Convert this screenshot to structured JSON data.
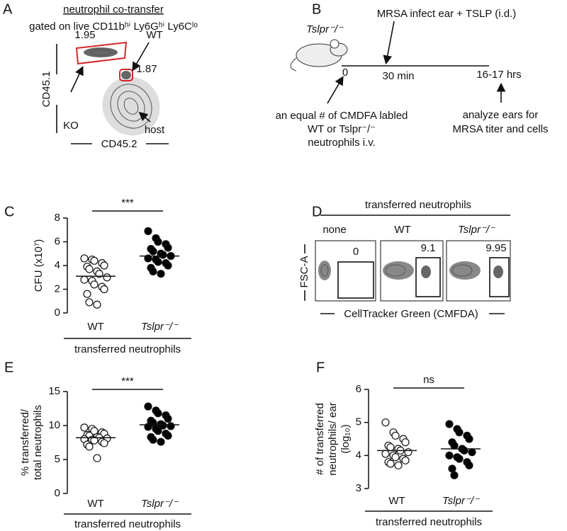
{
  "panels": {
    "A": {
      "letter": "A",
      "title": "neutrophil co-transfer",
      "subtitle": "gated on live CD11bʰⁱ Ly6Gʰⁱ Ly6Cˡᵒ",
      "gates": [
        "1.95",
        "WT",
        "1.87",
        "KO",
        "host"
      ],
      "ylabel": "CD45.1",
      "xlabel": "CD45.2"
    },
    "B": {
      "letter": "B",
      "mouse": "Tslpr⁻/⁻",
      "infect": "MRSA infect ear + TSLP (i.d.)",
      "times": [
        "0",
        "30 min",
        "16-17 hrs"
      ],
      "left_note": [
        "an equal # of CMDFA labled",
        "WT or Tslpr⁻/⁻",
        "neutrophils i.v."
      ],
      "right_note": [
        "analyze ears  for",
        "MRSA titer and cells"
      ]
    },
    "D": {
      "letter": "D",
      "group": "transferred neutrophils",
      "columns": [
        "none",
        "WT",
        "Tslpr⁻/⁻"
      ],
      "gates": [
        "0",
        "9.1",
        "9.95"
      ],
      "ylabel": "FSC-A",
      "xlabel": "CellTracker Green (CMFDA)"
    }
  },
  "chart_data": [
    {
      "type": "dot",
      "panel": "C",
      "ylabel": [
        "CFU (x10⁷)"
      ],
      "ylim": [
        0,
        8
      ],
      "yticks": [
        0,
        2,
        4,
        6,
        8
      ],
      "categories": [
        "WT",
        "Tslpr⁻/⁻"
      ],
      "group_label": "transferred neutrophils",
      "significance": "***",
      "colors": [
        "#ffffff",
        "#000000"
      ],
      "values": [
        [
          4.6,
          4.5,
          4.4,
          4.2,
          4.0,
          3.9,
          3.7,
          3.5,
          3.3,
          3.0,
          2.8,
          2.7,
          2.4,
          2.2,
          2.0,
          1.6,
          0.9,
          0.7
        ],
        [
          6.9,
          6.3,
          6.0,
          5.8,
          5.5,
          5.4,
          5.2,
          5.0,
          4.9,
          4.8,
          4.6,
          4.5,
          4.3,
          4.2,
          4.0,
          3.8,
          3.5,
          3.3
        ]
      ],
      "means": [
        3.1,
        4.8
      ]
    },
    {
      "type": "dot",
      "panel": "E",
      "ylabel": [
        "% transferred/",
        "total neutrophils"
      ],
      "ylim": [
        0,
        15
      ],
      "yticks": [
        0,
        5,
        10,
        15
      ],
      "categories": [
        "WT",
        "Tslpr⁻/⁻"
      ],
      "group_label": "transferred neutrophils",
      "significance": "***",
      "colors": [
        "#ffffff",
        "#000000"
      ],
      "values": [
        [
          9.7,
          9.5,
          9.2,
          9.0,
          8.8,
          8.6,
          8.5,
          8.3,
          8.2,
          8.1,
          8.0,
          7.9,
          7.8,
          7.6,
          7.4,
          7.2,
          6.9,
          5.2
        ],
        [
          12.8,
          12.2,
          11.8,
          11.5,
          11.0,
          10.7,
          10.4,
          10.2,
          10.0,
          9.9,
          9.8,
          9.5,
          9.2,
          8.8,
          8.5,
          8.3,
          7.9,
          7.6
        ]
      ],
      "means": [
        8.2,
        10.1
      ]
    },
    {
      "type": "dot",
      "panel": "F",
      "ylabel": [
        "# of transferred",
        "neutrophils/ ear",
        "(log₁₀)"
      ],
      "ylim": [
        3,
        6
      ],
      "yticks": [
        3,
        4,
        5,
        6
      ],
      "categories": [
        "WT",
        "Tslpr⁻/⁻"
      ],
      "group_label": "transferred neutrophils",
      "significance": "ns",
      "colors": [
        "#ffffff",
        "#000000"
      ],
      "values": [
        [
          5.0,
          4.7,
          4.6,
          4.5,
          4.4,
          4.3,
          4.25,
          4.2,
          4.15,
          4.1,
          4.05,
          4.0,
          3.95,
          3.9,
          3.85,
          3.8,
          3.75,
          3.7
        ],
        [
          4.95,
          4.8,
          4.7,
          4.6,
          4.5,
          4.4,
          4.3,
          4.2,
          4.15,
          4.1,
          4.0,
          3.95,
          3.9,
          3.8,
          3.7,
          3.6,
          3.4
        ]
      ],
      "means": [
        4.15,
        4.2
      ]
    }
  ]
}
